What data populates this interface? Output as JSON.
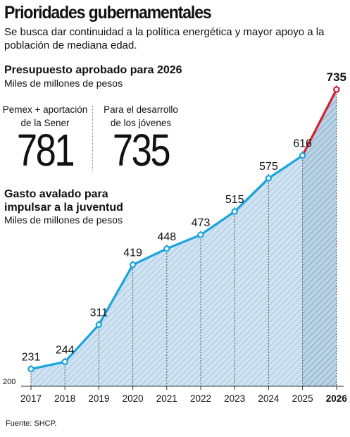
{
  "header": {
    "title": "Prioridades gubernamentales",
    "subtitle": "Se busca dar continuidad a la política energética y mayor apoyo a la población de mediana edad."
  },
  "budget": {
    "heading": "Presupuesto aprobado para 2026",
    "unit": "Miles de millones de pesos",
    "stats": [
      {
        "label_line1": "Pemex + aportación",
        "label_line2": "de la Sener",
        "value": "781"
      },
      {
        "label_line1": "Para el desarrollo",
        "label_line2": "de los jóvenes",
        "value": "735"
      }
    ]
  },
  "chart_section": {
    "heading_line1": "Gasto avalado para",
    "heading_line2": "impulsar a la juventud",
    "unit": "Miles de millones de pesos"
  },
  "source": "Fuente: SHCP.",
  "colors": {
    "line": "#1aa3dc",
    "projection_line": "#d6202f",
    "area_fill": "#cfe3f2",
    "hatch": "#9fc0d8"
  },
  "chart_data": {
    "type": "line",
    "title": "Gasto avalado para impulsar a la juventud",
    "ylabel": "Miles de millones de pesos",
    "categories": [
      "2017",
      "2018",
      "2019",
      "2020",
      "2021",
      "2022",
      "2023",
      "2024",
      "2025",
      "2026"
    ],
    "values": [
      231,
      244,
      311,
      419,
      448,
      473,
      515,
      575,
      616,
      735
    ],
    "y_tick": "200",
    "ylim": [
      200,
      735
    ],
    "highlight_last": true,
    "grid": false
  }
}
